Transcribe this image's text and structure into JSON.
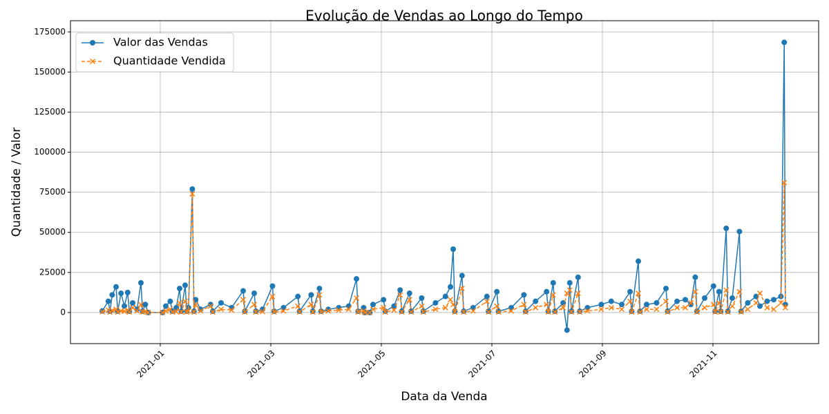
{
  "chart_data": {
    "type": "line",
    "title": "Evolução de Vendas ao Longo do Tempo",
    "x_label": "Data da Venda",
    "y_label": "Quantidade / Valor",
    "x": [
      -0.05,
      0.06,
      0.09,
      0.13,
      0.2,
      0.23,
      0.29,
      0.35,
      0.41,
      0.44,
      0.5,
      0.58,
      0.65,
      0.68,
      0.73,
      0.78,
      1.04,
      1.1,
      1.18,
      1.22,
      1.29,
      1.35,
      1.38,
      1.45,
      1.48,
      1.51,
      1.58,
      1.61,
      1.64,
      1.73,
      1.91,
      1.95,
      2.1,
      2.29,
      2.5,
      2.53,
      2.7,
      2.73,
      2.85,
      3.03,
      3.06,
      3.23,
      3.49,
      3.52,
      3.73,
      3.76,
      3.88,
      3.91,
      4.04,
      4.23,
      4.41,
      4.55,
      4.58,
      4.68,
      4.7,
      4.79,
      4.85,
      5.04,
      5.07,
      5.23,
      5.34,
      5.37,
      5.51,
      5.54,
      5.73,
      5.76,
      5.98,
      6.16,
      6.25,
      6.3,
      6.33,
      6.46,
      6.49,
      6.66,
      6.91,
      6.94,
      7.09,
      7.12,
      7.35,
      7.58,
      7.61,
      7.79,
      7.99,
      8.02,
      8.11,
      8.14,
      8.29,
      8.36,
      8.41,
      8.44,
      8.56,
      8.59,
      8.73,
      8.98,
      9.16,
      9.35,
      9.5,
      9.53,
      9.65,
      9.68,
      9.8,
      9.98,
      10.15,
      10.18,
      10.35,
      10.5,
      10.6,
      10.68,
      10.71,
      10.85,
      11.01,
      11.04,
      11.11,
      11.14,
      11.24,
      11.27,
      11.35,
      11.48,
      11.51,
      11.63,
      11.78,
      11.85,
      11.98,
      12.1,
      12.23,
      12.29,
      12.31
    ],
    "series": [
      {
        "name": "Valor das Vendas",
        "color": "#1f77b4",
        "marker": "o",
        "dash": false,
        "values": [
          1000,
          7000,
          800,
          11000,
          16000,
          800,
          12000,
          4000,
          12500,
          800,
          6000,
          2000,
          18500,
          800,
          5000,
          0,
          0,
          4000,
          7000,
          800,
          3000,
          15000,
          800,
          17000,
          800,
          3000,
          77000,
          800,
          8000,
          2000,
          5000,
          800,
          6000,
          3000,
          13500,
          800,
          12000,
          800,
          2000,
          16500,
          800,
          3000,
          10000,
          800,
          11000,
          800,
          15000,
          800,
          2000,
          3000,
          4000,
          21000,
          800,
          3000,
          0,
          0,
          5000,
          8000,
          800,
          4000,
          14000,
          800,
          12000,
          800,
          9000,
          800,
          6000,
          10000,
          16000,
          39500,
          800,
          23000,
          800,
          3000,
          10000,
          800,
          13000,
          800,
          3000,
          11000,
          800,
          7000,
          13000,
          800,
          18500,
          800,
          6000,
          -11000,
          18500,
          800,
          22000,
          800,
          3000,
          5000,
          7000,
          5000,
          13000,
          800,
          32000,
          800,
          5000,
          6000,
          15000,
          800,
          7000,
          8000,
          5000,
          22000,
          800,
          9000,
          16500,
          800,
          13000,
          800,
          52500,
          800,
          9000,
          50500,
          800,
          6000,
          10000,
          4000,
          7000,
          8000,
          10000,
          168500,
          5000
        ]
      },
      {
        "name": "Quantidade Vendida",
        "color": "#ff7f0e",
        "marker": "x",
        "dash": true,
        "values": [
          500,
          1500,
          300,
          1200,
          2000,
          300,
          1000,
          800,
          1500,
          300,
          3000,
          1000,
          5000,
          300,
          600,
          0,
          0,
          1000,
          2000,
          300,
          500,
          6000,
          300,
          7000,
          300,
          1000,
          74000,
          300,
          5000,
          1000,
          4000,
          300,
          2000,
          1500,
          8000,
          300,
          5000,
          300,
          500,
          10000,
          300,
          1000,
          4000,
          300,
          5000,
          300,
          11000,
          300,
          1000,
          1500,
          2000,
          9000,
          300,
          1000,
          0,
          0,
          2000,
          3000,
          300,
          1500,
          11000,
          300,
          8000,
          300,
          4000,
          300,
          2000,
          3000,
          8000,
          5000,
          300,
          15000,
          300,
          1000,
          7000,
          300,
          4000,
          300,
          1000,
          5000,
          300,
          3000,
          5000,
          300,
          11000,
          300,
          3000,
          12000,
          14000,
          300,
          12000,
          300,
          1000,
          2000,
          3000,
          2000,
          7000,
          300,
          12000,
          300,
          2000,
          2000,
          7000,
          300,
          3000,
          3000,
          6000,
          13000,
          300,
          3000,
          5000,
          300,
          6000,
          300,
          14000,
          300,
          4000,
          13000,
          300,
          2000,
          6000,
          12000,
          3000,
          2000,
          6000,
          81000,
          3000
        ]
      }
    ],
    "xlim": [
      -0.625,
      12.9125
    ],
    "xticks": [
      {
        "value": 1,
        "label": "2021-01"
      },
      {
        "value": 3,
        "label": "2021-03"
      },
      {
        "value": 5,
        "label": "2021-05"
      },
      {
        "value": 7,
        "label": "2021-07"
      },
      {
        "value": 9,
        "label": "2021-09"
      },
      {
        "value": 11,
        "label": "2021-11"
      }
    ],
    "ylim": [
      -19400,
      182000
    ],
    "yticks": [
      0,
      25000,
      50000,
      75000,
      100000,
      125000,
      150000,
      175000
    ],
    "grid": true,
    "legend": "upper-left"
  }
}
